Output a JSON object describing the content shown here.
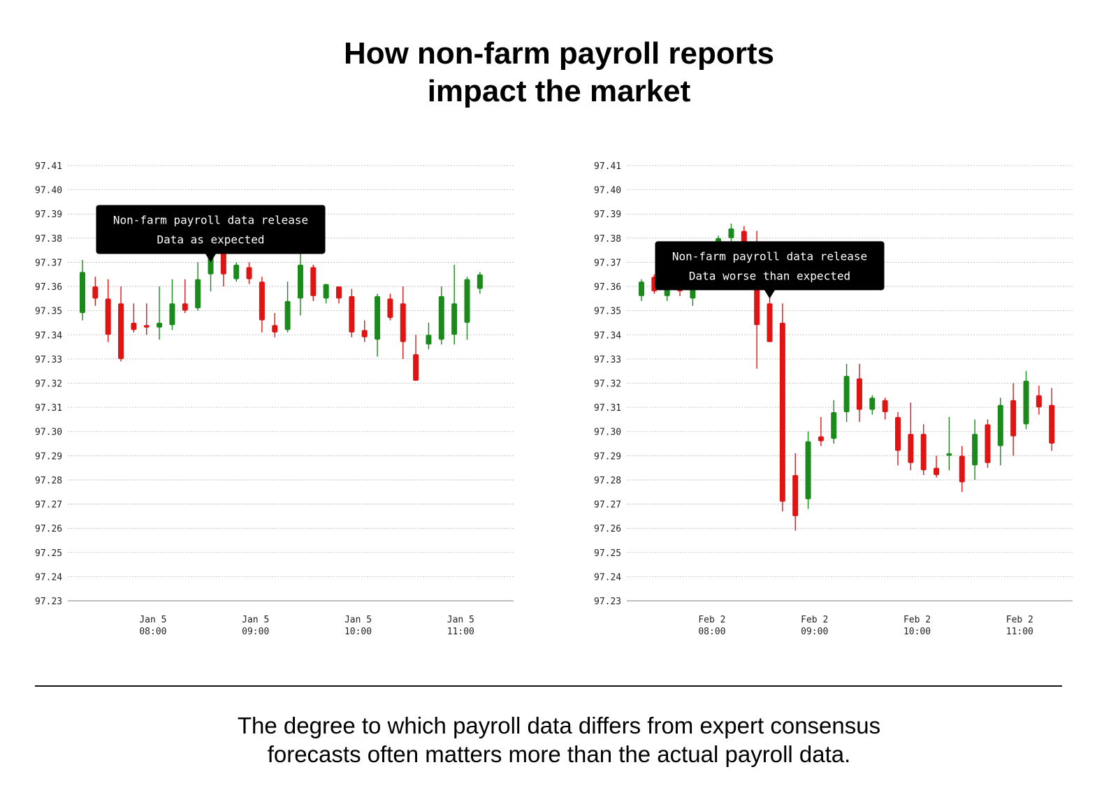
{
  "title": {
    "line1": "How non-farm payroll reports",
    "line2": "impact the market"
  },
  "caption": {
    "line1": "The degree to which payroll data differs from expert consensus",
    "line2": "forecasts often matters more than the actual payroll data."
  },
  "colors": {
    "up": "#1a8a1a",
    "down": "#e11414",
    "grid": "#b5b5b5",
    "axis": "#999999",
    "tooltip_bg": "#000000",
    "tooltip_text": "#ffffff"
  },
  "chart_data": [
    {
      "type": "candlestick",
      "y_ticks": [
        "97.41",
        "97.40",
        "97.39",
        "97.38",
        "97.37",
        "97.36",
        "97.35",
        "97.34",
        "97.33",
        "97.32",
        "97.31",
        "97.30",
        "97.29",
        "97.28",
        "97.27",
        "97.26",
        "97.25",
        "97.24",
        "97.23"
      ],
      "ylim": [
        97.23,
        97.41
      ],
      "x_ticks": [
        {
          "index": 5.5,
          "date": "Jan 5",
          "time": "08:00"
        },
        {
          "index": 13.5,
          "date": "Jan 5",
          "time": "09:00"
        },
        {
          "index": 21.5,
          "date": "Jan 5",
          "time": "10:00"
        },
        {
          "index": 29.5,
          "date": "Jan 5",
          "time": "11:00"
        }
      ],
      "annotation": {
        "index": 10,
        "price": 97.37,
        "line1": "Non-farm payroll data release",
        "line2": "Data as expected"
      },
      "candles": [
        {
          "o": 97.349,
          "h": 97.371,
          "l": 97.346,
          "c": 97.366
        },
        {
          "o": 97.36,
          "h": 97.364,
          "l": 97.352,
          "c": 97.355
        },
        {
          "o": 97.355,
          "h": 97.363,
          "l": 97.337,
          "c": 97.34
        },
        {
          "o": 97.353,
          "h": 97.36,
          "l": 97.329,
          "c": 97.33
        },
        {
          "o": 97.345,
          "h": 97.353,
          "l": 97.341,
          "c": 97.342
        },
        {
          "o": 97.344,
          "h": 97.353,
          "l": 97.34,
          "c": 97.343
        },
        {
          "o": 97.343,
          "h": 97.36,
          "l": 97.338,
          "c": 97.345
        },
        {
          "o": 97.344,
          "h": 97.363,
          "l": 97.342,
          "c": 97.353
        },
        {
          "o": 97.353,
          "h": 97.363,
          "l": 97.349,
          "c": 97.35
        },
        {
          "o": 97.351,
          "h": 97.37,
          "l": 97.35,
          "c": 97.363
        },
        {
          "o": 97.365,
          "h": 97.377,
          "l": 97.358,
          "c": 97.375
        },
        {
          "o": 97.375,
          "h": 97.378,
          "l": 97.36,
          "c": 97.365
        },
        {
          "o": 97.363,
          "h": 97.37,
          "l": 97.362,
          "c": 97.369
        },
        {
          "o": 97.368,
          "h": 97.37,
          "l": 97.361,
          "c": 97.363
        },
        {
          "o": 97.362,
          "h": 97.364,
          "l": 97.341,
          "c": 97.346
        },
        {
          "o": 97.344,
          "h": 97.349,
          "l": 97.339,
          "c": 97.341
        },
        {
          "o": 97.342,
          "h": 97.362,
          "l": 97.341,
          "c": 97.354
        },
        {
          "o": 97.355,
          "h": 97.374,
          "l": 97.348,
          "c": 97.369
        },
        {
          "o": 97.368,
          "h": 97.369,
          "l": 97.354,
          "c": 97.356
        },
        {
          "o": 97.355,
          "h": 97.361,
          "l": 97.353,
          "c": 97.361
        },
        {
          "o": 97.36,
          "h": 97.36,
          "l": 97.353,
          "c": 97.355
        },
        {
          "o": 97.356,
          "h": 97.359,
          "l": 97.339,
          "c": 97.341
        },
        {
          "o": 97.342,
          "h": 97.346,
          "l": 97.337,
          "c": 97.339
        },
        {
          "o": 97.338,
          "h": 97.357,
          "l": 97.331,
          "c": 97.356
        },
        {
          "o": 97.355,
          "h": 97.357,
          "l": 97.346,
          "c": 97.347
        },
        {
          "o": 97.353,
          "h": 97.36,
          "l": 97.33,
          "c": 97.337
        },
        {
          "o": 97.332,
          "h": 97.34,
          "l": 97.321,
          "c": 97.321
        },
        {
          "o": 97.336,
          "h": 97.345,
          "l": 97.334,
          "c": 97.34
        },
        {
          "o": 97.338,
          "h": 97.36,
          "l": 97.336,
          "c": 97.356
        },
        {
          "o": 97.34,
          "h": 97.369,
          "l": 97.336,
          "c": 97.353
        },
        {
          "o": 97.345,
          "h": 97.364,
          "l": 97.338,
          "c": 97.363
        },
        {
          "o": 97.359,
          "h": 97.366,
          "l": 97.357,
          "c": 97.365
        }
      ]
    },
    {
      "type": "candlestick",
      "y_ticks": [
        "97.41",
        "97.40",
        "97.39",
        "97.38",
        "97.37",
        "97.36",
        "97.35",
        "97.34",
        "97.33",
        "97.32",
        "97.31",
        "97.30",
        "97.29",
        "97.28",
        "97.27",
        "97.26",
        "97.25",
        "97.24",
        "97.23"
      ],
      "ylim": [
        97.23,
        97.41
      ],
      "x_ticks": [
        {
          "index": 5.5,
          "date": "Feb 2",
          "time": "08:00"
        },
        {
          "index": 13.5,
          "date": "Feb 2",
          "time": "09:00"
        },
        {
          "index": 21.5,
          "date": "Feb 2",
          "time": "10:00"
        },
        {
          "index": 29.5,
          "date": "Feb 2",
          "time": "11:00"
        }
      ],
      "annotation": {
        "index": 10,
        "price": 97.355,
        "line1": "Non-farm payroll data release",
        "line2": "Data worse than expected"
      },
      "candles": [
        {
          "o": 97.356,
          "h": 97.363,
          "l": 97.354,
          "c": 97.362
        },
        {
          "o": 97.364,
          "h": 97.365,
          "l": 97.357,
          "c": 97.358
        },
        {
          "o": 97.356,
          "h": 97.362,
          "l": 97.354,
          "c": 97.36
        },
        {
          "o": 97.36,
          "h": 97.362,
          "l": 97.356,
          "c": 97.358
        },
        {
          "o": 97.355,
          "h": 97.368,
          "l": 97.352,
          "c": 97.362
        },
        {
          "o": 97.361,
          "h": 97.37,
          "l": 97.359,
          "c": 97.368
        },
        {
          "o": 97.372,
          "h": 97.381,
          "l": 97.369,
          "c": 97.38
        },
        {
          "o": 97.38,
          "h": 97.386,
          "l": 97.375,
          "c": 97.384
        },
        {
          "o": 97.383,
          "h": 97.385,
          "l": 97.375,
          "c": 97.377
        },
        {
          "o": 97.368,
          "h": 97.383,
          "l": 97.326,
          "c": 97.344
        },
        {
          "o": 97.353,
          "h": 97.357,
          "l": 97.337,
          "c": 97.337
        },
        {
          "o": 97.345,
          "h": 97.353,
          "l": 97.267,
          "c": 97.271
        },
        {
          "o": 97.282,
          "h": 97.291,
          "l": 97.259,
          "c": 97.265
        },
        {
          "o": 97.272,
          "h": 97.3,
          "l": 97.268,
          "c": 97.296
        },
        {
          "o": 97.298,
          "h": 97.306,
          "l": 97.294,
          "c": 97.296
        },
        {
          "o": 97.297,
          "h": 97.313,
          "l": 97.295,
          "c": 97.308
        },
        {
          "o": 97.308,
          "h": 97.328,
          "l": 97.304,
          "c": 97.323
        },
        {
          "o": 97.322,
          "h": 97.328,
          "l": 97.304,
          "c": 97.309
        },
        {
          "o": 97.309,
          "h": 97.315,
          "l": 97.307,
          "c": 97.314
        },
        {
          "o": 97.313,
          "h": 97.314,
          "l": 97.305,
          "c": 97.308
        },
        {
          "o": 97.306,
          "h": 97.308,
          "l": 97.286,
          "c": 97.292
        },
        {
          "o": 97.299,
          "h": 97.312,
          "l": 97.284,
          "c": 97.287
        },
        {
          "o": 97.299,
          "h": 97.303,
          "l": 97.282,
          "c": 97.284
        },
        {
          "o": 97.285,
          "h": 97.29,
          "l": 97.281,
          "c": 97.282
        },
        {
          "o": 97.29,
          "h": 97.306,
          "l": 97.284,
          "c": 97.291
        },
        {
          "o": 97.29,
          "h": 97.294,
          "l": 97.275,
          "c": 97.279
        },
        {
          "o": 97.286,
          "h": 97.305,
          "l": 97.28,
          "c": 97.299
        },
        {
          "o": 97.303,
          "h": 97.305,
          "l": 97.285,
          "c": 97.287
        },
        {
          "o": 97.294,
          "h": 97.314,
          "l": 97.286,
          "c": 97.311
        },
        {
          "o": 97.313,
          "h": 97.32,
          "l": 97.29,
          "c": 97.298
        },
        {
          "o": 97.303,
          "h": 97.325,
          "l": 97.301,
          "c": 97.321
        },
        {
          "o": 97.315,
          "h": 97.319,
          "l": 97.307,
          "c": 97.31
        },
        {
          "o": 97.311,
          "h": 97.318,
          "l": 97.292,
          "c": 97.295
        }
      ]
    }
  ]
}
